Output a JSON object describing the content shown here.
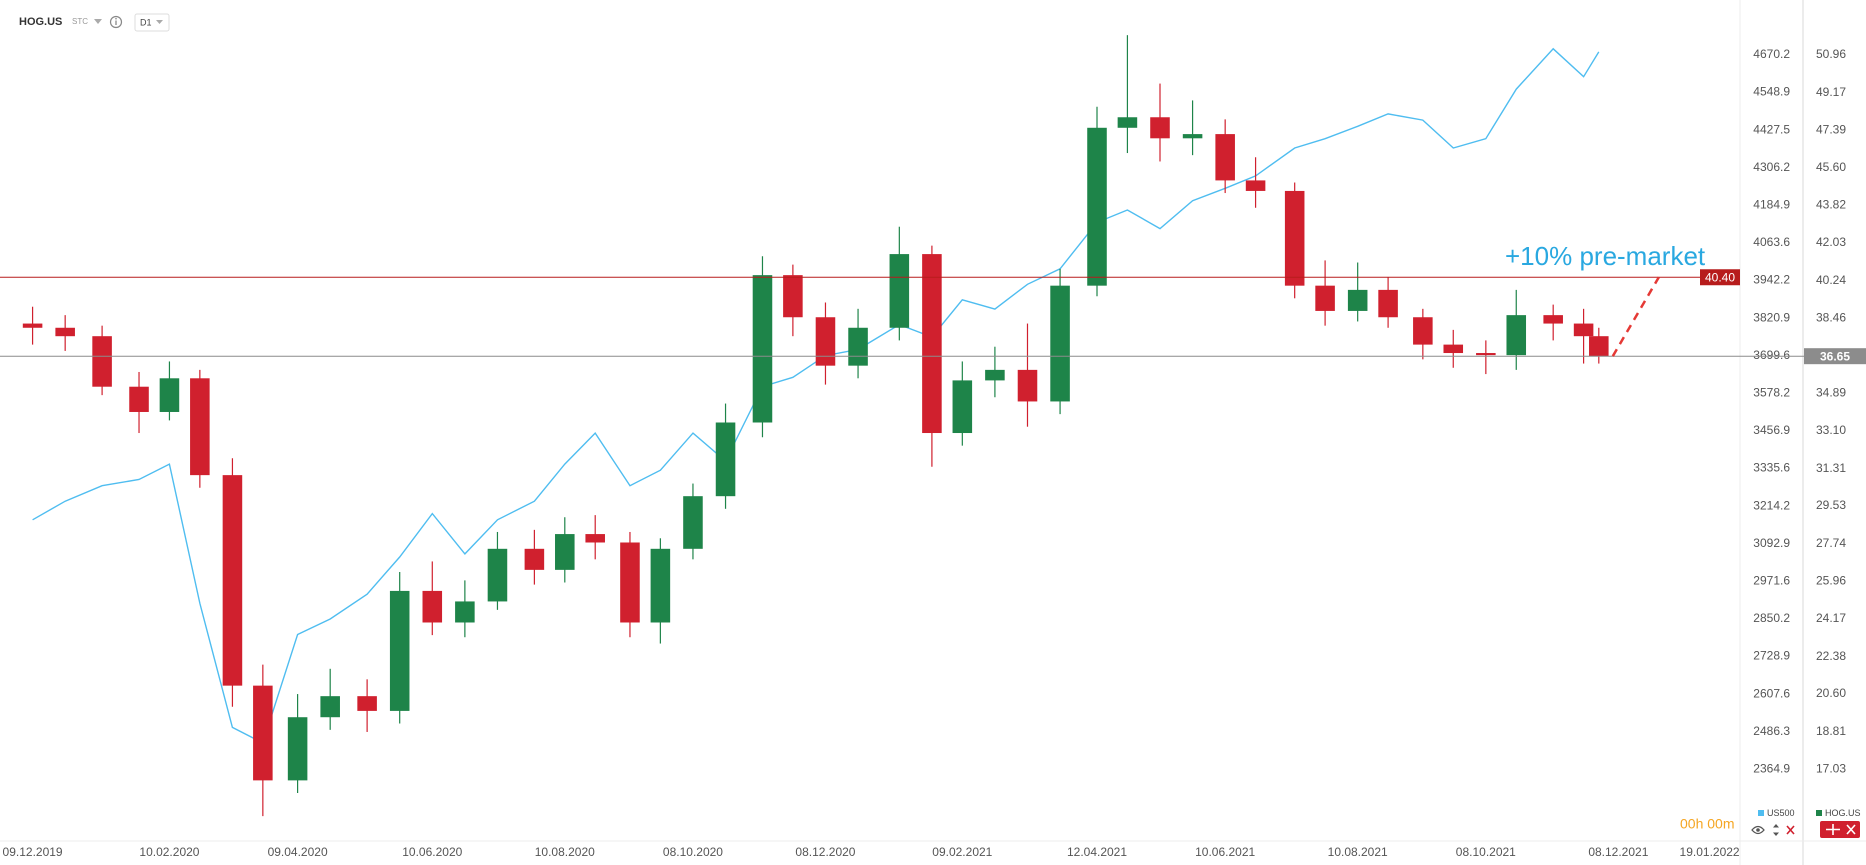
{
  "header": {
    "symbol": "HOG.US",
    "tag": "STC",
    "interval": "D1"
  },
  "chart_data": {
    "type": "candlestick",
    "annotation": "+10% pre-market",
    "x": [
      "09.12.2019",
      "24.12.2019",
      "10.01.2020",
      "27.01.2020",
      "10.02.2020",
      "24.02.2020",
      "10.03.2020",
      "24.03.2020",
      "09.04.2020",
      "24.04.2020",
      "11.05.2020",
      "26.05.2020",
      "10.06.2020",
      "25.06.2020",
      "10.07.2020",
      "27.07.2020",
      "10.08.2020",
      "24.08.2020",
      "09.09.2020",
      "23.09.2020",
      "08.10.2020",
      "23.10.2020",
      "09.11.2020",
      "23.11.2020",
      "08.12.2020",
      "23.12.2020",
      "11.01.2021",
      "26.01.2021",
      "09.02.2021",
      "24.02.2021",
      "11.03.2021",
      "26.03.2021",
      "12.04.2021",
      "26.04.2021",
      "11.05.2021",
      "26.05.2021",
      "10.06.2021",
      "24.06.2021",
      "12.07.2021",
      "26.07.2021",
      "10.08.2021",
      "24.08.2021",
      "09.09.2021",
      "23.09.2021",
      "08.10.2021",
      "22.10.2021",
      "08.11.2021",
      "22.11.2021",
      "29.11.2021"
    ],
    "xlim": [
      "24.11.2019",
      "02.02.2022"
    ],
    "xticks": [
      "09.12.2019",
      "10.02.2020",
      "09.04.2020",
      "10.06.2020",
      "10.08.2020",
      "08.10.2020",
      "08.12.2020",
      "09.02.2021",
      "12.04.2021",
      "10.06.2021",
      "10.08.2021",
      "08.10.2021",
      "08.12.2021",
      "19.01.2022"
    ],
    "series": [
      {
        "name": "US500",
        "type": "line",
        "axis": "y",
        "color": "#4fbdf0",
        "values": [
          3170,
          3230,
          3280,
          3300,
          3350,
          2900,
          2500,
          2450,
          2800,
          2850,
          2930,
          3050,
          3190,
          3060,
          3170,
          3230,
          3350,
          3450,
          3280,
          3330,
          3450,
          3360,
          3600,
          3630,
          3700,
          3720,
          3800,
          3760,
          3880,
          3850,
          3930,
          3980,
          4130,
          4170,
          4110,
          4200,
          4240,
          4280,
          4370,
          4400,
          4440,
          4480,
          4460,
          4370,
          4400,
          4560,
          4690,
          4600,
          4680
        ]
      },
      {
        "name": "HOG.US",
        "type": "candlestick",
        "axis": "y2",
        "color": "#1e8449",
        "down_color": "#d0202e",
        "open": [
          38.2,
          38.0,
          37.6,
          35.2,
          34.0,
          35.6,
          31.0,
          21.0,
          16.5,
          19.5,
          20.5,
          19.8,
          25.5,
          24.0,
          25.0,
          27.5,
          26.5,
          28.2,
          27.8,
          24.0,
          27.5,
          30.0,
          33.5,
          40.5,
          38.5,
          36.2,
          38.0,
          41.5,
          33.0,
          35.5,
          36.0,
          34.5,
          40.0,
          47.5,
          48.0,
          47.0,
          47.2,
          45.0,
          44.5,
          40.0,
          38.8,
          39.8,
          38.5,
          37.2,
          36.8,
          36.7,
          38.6,
          38.2,
          37.6
        ],
        "high": [
          39.0,
          38.6,
          38.1,
          35.9,
          36.4,
          36.0,
          31.8,
          22.0,
          20.6,
          21.8,
          21.3,
          26.4,
          26.9,
          26.0,
          28.3,
          28.4,
          29.0,
          29.1,
          28.3,
          28.0,
          30.6,
          34.4,
          41.4,
          41.0,
          39.2,
          38.9,
          42.8,
          41.9,
          36.4,
          37.1,
          38.2,
          40.8,
          48.5,
          51.9,
          49.6,
          48.8,
          47.9,
          46.1,
          44.9,
          41.2,
          41.1,
          40.4,
          38.9,
          37.9,
          37.4,
          39.8,
          39.1,
          38.9,
          38.0
        ],
        "low": [
          37.2,
          36.9,
          34.8,
          33.0,
          33.6,
          30.4,
          20.0,
          14.8,
          15.9,
          18.9,
          18.8,
          19.2,
          23.4,
          23.3,
          24.6,
          25.8,
          25.9,
          27.0,
          23.3,
          23.0,
          27.0,
          29.4,
          32.8,
          37.6,
          35.3,
          35.6,
          37.4,
          31.4,
          32.4,
          34.7,
          33.3,
          33.9,
          39.5,
          46.3,
          45.9,
          46.2,
          44.4,
          43.7,
          39.4,
          38.1,
          38.3,
          38.0,
          36.5,
          36.1,
          35.8,
          36.0,
          37.4,
          36.3,
          36.3
        ],
        "close": [
          38.0,
          37.6,
          35.2,
          34.0,
          35.6,
          31.0,
          21.0,
          16.5,
          19.5,
          20.5,
          19.8,
          25.5,
          24.0,
          25.0,
          27.5,
          26.5,
          28.2,
          27.8,
          24.0,
          27.5,
          30.0,
          33.5,
          40.5,
          38.5,
          36.2,
          38.0,
          41.5,
          33.0,
          35.5,
          36.0,
          34.5,
          40.0,
          47.5,
          48.0,
          47.0,
          47.2,
          45.0,
          44.5,
          40.0,
          38.8,
          39.8,
          38.5,
          37.2,
          36.8,
          36.7,
          38.6,
          38.2,
          37.6,
          36.65
        ]
      }
    ],
    "ylim": [
      2133.5,
      4847.6
    ],
    "yticks": [
      4670.2,
      4548.9,
      4427.5,
      4306.2,
      4184.9,
      4063.6,
      3942.2,
      3820.9,
      3699.6,
      3578.2,
      3456.9,
      3335.6,
      3214.2,
      3092.9,
      2971.6,
      2850.2,
      2728.9,
      2607.6,
      2486.3,
      2364.9
    ],
    "y2lim": [
      13.62,
      53.57
    ],
    "y2ticks": [
      50.96,
      49.17,
      47.39,
      {
        "value": 45.6,
        "label": "45.60"
      },
      43.82,
      42.03,
      40.24,
      38.46,
      34.89,
      {
        "value": 33.1,
        "label": "33.10"
      },
      31.31,
      29.53,
      27.74,
      25.96,
      24.17,
      22.38,
      {
        "value": 20.6,
        "label": "20.60"
      },
      18.81,
      17.03
    ],
    "hlines": [
      {
        "value": 40.4,
        "label": "40.40",
        "axis": "y2",
        "color": "#b71c1c"
      },
      {
        "value": 36.65,
        "axis": "y2",
        "color": "#8c8c8c"
      }
    ],
    "grid": false
  },
  "footer": {
    "timer": "00h 00m"
  }
}
